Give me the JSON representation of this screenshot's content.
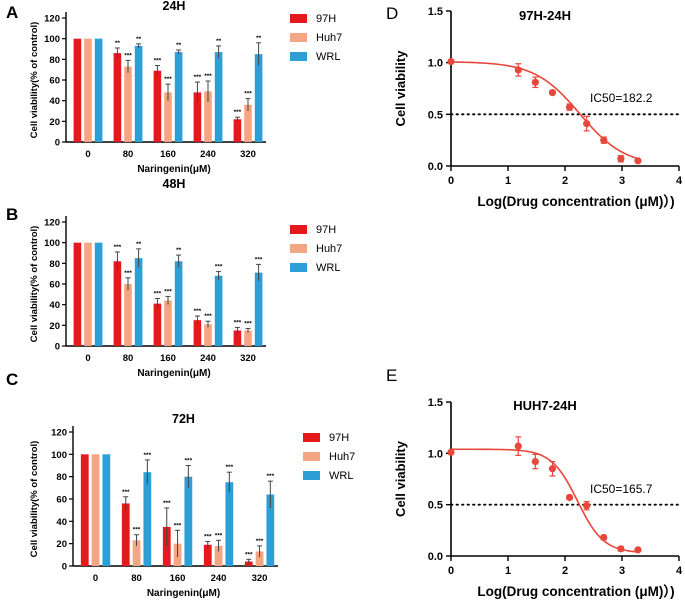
{
  "colors": {
    "h97": "#e41a1c",
    "huh7": "#f4a582",
    "wrl": "#2b9fd6",
    "curve": "#e8473b",
    "axis": "#000000"
  },
  "chart_data": [
    {
      "panel": "A",
      "type": "bar",
      "title": "24H",
      "xlabel": "Naringenin(μM)",
      "ylabel": "Cell viability(% of control)",
      "ylim": [
        0,
        120
      ],
      "yticks": [
        0,
        20,
        40,
        60,
        80,
        100,
        120
      ],
      "categories": [
        "0",
        "80",
        "160",
        "240",
        "320"
      ],
      "legend": [
        "97H",
        "Huh7",
        "WRL"
      ],
      "series": [
        {
          "name": "97H",
          "values": [
            100,
            86,
            69,
            48,
            22
          ],
          "errors": [
            0,
            5,
            5,
            10,
            2
          ],
          "sig": [
            "",
            "**",
            "***",
            "***",
            "***"
          ]
        },
        {
          "name": "Huh7",
          "values": [
            100,
            73,
            48,
            49,
            36
          ],
          "errors": [
            0,
            6,
            8,
            10,
            6
          ],
          "sig": [
            "",
            "***",
            "***",
            "***",
            "***"
          ]
        },
        {
          "name": "WRL",
          "values": [
            100,
            93,
            87,
            87,
            85
          ],
          "errors": [
            0,
            2,
            2,
            6,
            11
          ],
          "sig": [
            "",
            "**",
            "**",
            "**",
            "**"
          ]
        }
      ]
    },
    {
      "panel": "B",
      "type": "bar",
      "title": "48H",
      "xlabel": "Naringenin(μM)",
      "ylabel": "Cell viability(% of control)",
      "ylim": [
        0,
        120
      ],
      "yticks": [
        0,
        20,
        40,
        60,
        80,
        100,
        120
      ],
      "categories": [
        "0",
        "80",
        "160",
        "240",
        "320"
      ],
      "legend": [
        "97H",
        "Huh7",
        "WRL"
      ],
      "series": [
        {
          "name": "97H",
          "values": [
            100,
            82,
            41,
            25,
            15
          ],
          "errors": [
            0,
            9,
            5,
            4,
            3
          ],
          "sig": [
            "",
            "***",
            "***",
            "***",
            "***"
          ]
        },
        {
          "name": "Huh7",
          "values": [
            100,
            60,
            44,
            21,
            15
          ],
          "errors": [
            0,
            6,
            4,
            3,
            2
          ],
          "sig": [
            "",
            "***",
            "***",
            "***",
            "***"
          ]
        },
        {
          "name": "WRL",
          "values": [
            100,
            85,
            82,
            68,
            71
          ],
          "errors": [
            0,
            9,
            6,
            4,
            8
          ],
          "sig": [
            "",
            "**",
            "**",
            "***",
            "***"
          ]
        }
      ]
    },
    {
      "panel": "C",
      "type": "bar",
      "title": "72H",
      "xlabel": "Naringenin(μM)",
      "ylabel": "Cell viability(% of control)",
      "ylim": [
        0,
        120
      ],
      "yticks": [
        0,
        20,
        40,
        60,
        80,
        100,
        120
      ],
      "categories": [
        "0",
        "80",
        "160",
        "240",
        "320"
      ],
      "legend": [
        "97H",
        "Huh7",
        "WRL"
      ],
      "series": [
        {
          "name": "97H",
          "values": [
            100,
            56,
            35,
            19,
            4
          ],
          "errors": [
            0,
            6,
            17,
            3,
            2
          ],
          "sig": [
            "",
            "***",
            "***",
            "***",
            "***"
          ]
        },
        {
          "name": "Huh7",
          "values": [
            100,
            23,
            20,
            18,
            13
          ],
          "errors": [
            0,
            5,
            12,
            5,
            5
          ],
          "sig": [
            "",
            "***",
            "***",
            "***",
            "***"
          ]
        },
        {
          "name": "WRL",
          "values": [
            100,
            84,
            80,
            75,
            64
          ],
          "errors": [
            0,
            11,
            10,
            9,
            12
          ],
          "sig": [
            "",
            "***",
            "***",
            "***",
            "***"
          ]
        }
      ]
    },
    {
      "panel": "D",
      "type": "scatter",
      "title": "97H-24H",
      "xlabel": "Log(Drug concentration (μM)）)",
      "ylabel": "Cell viability",
      "xlim": [
        0,
        4
      ],
      "ylim": [
        0,
        1.5
      ],
      "xticks": [
        0,
        1,
        2,
        3,
        4
      ],
      "yticks": [
        "0.0",
        "0.5",
        "1.0",
        "1.5"
      ],
      "reference_line": 0.5,
      "annotation": "IC50=182.2",
      "fit": {
        "top": 1.01,
        "bottom": 0.0,
        "logIC50": 2.26,
        "hill": 1.1
      },
      "points": {
        "x": [
          0,
          1.18,
          1.48,
          1.78,
          2.08,
          2.38,
          2.68,
          2.98,
          3.28
        ],
        "y": [
          1.01,
          0.93,
          0.81,
          0.71,
          0.57,
          0.41,
          0.25,
          0.07,
          0.05
        ],
        "err": [
          0,
          0.06,
          0.05,
          0.02,
          0.03,
          0.07,
          0.03,
          0.03,
          0.01
        ]
      }
    },
    {
      "panel": "E",
      "type": "scatter",
      "title": "HUH7-24H",
      "xlabel": "Log(Drug concentration (μM)）)",
      "ylabel": "Cell viability",
      "xlim": [
        0,
        4
      ],
      "ylim": [
        0,
        1.5
      ],
      "xticks": [
        0,
        1,
        2,
        3,
        4
      ],
      "yticks": [
        "0.0",
        "0.5",
        "1.0",
        "1.5"
      ],
      "reference_line": 0.5,
      "annotation": "IC50=165.7",
      "fit": {
        "top": 1.04,
        "bottom": 0.03,
        "logIC50": 2.22,
        "hill": 1.9
      },
      "points": {
        "x": [
          0,
          1.18,
          1.48,
          1.78,
          2.08,
          2.38,
          2.68,
          2.98,
          3.28
        ],
        "y": [
          1.01,
          1.07,
          0.92,
          0.85,
          0.57,
          0.49,
          0.18,
          0.07,
          0.06
        ],
        "err": [
          0,
          0.09,
          0.07,
          0.07,
          0.02,
          0.04,
          0.02,
          0.02,
          0.01
        ]
      }
    }
  ]
}
